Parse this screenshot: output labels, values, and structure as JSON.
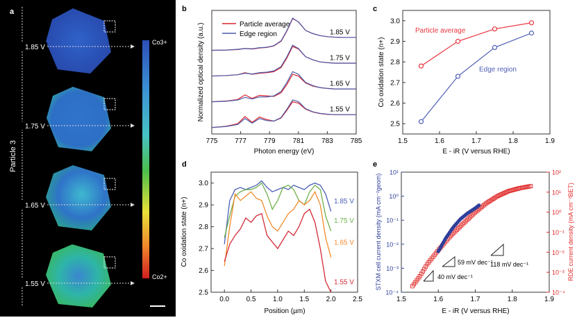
{
  "panel_labels": {
    "a": "a",
    "b": "b",
    "c": "c",
    "d": "d",
    "e": "e"
  },
  "panel_a": {
    "particle_label": "Particle 3",
    "voltages": [
      "1.85 V",
      "1.75 V",
      "1.65 V",
      "1.55 V"
    ],
    "colorbar_top": "Co3+",
    "colorbar_bottom": "Co2+",
    "colors": {
      "high": "#2b4fb8",
      "mid": "#3fa9d8",
      "low": "#d21f1f"
    }
  },
  "chart_data": [
    {
      "id": "b",
      "type": "line",
      "xlabel": "Photon energy (eV)",
      "ylabel": "Normalized optical density (a.u.)",
      "xlim": [
        775,
        785
      ],
      "xticks": [
        775,
        777,
        779,
        781,
        783,
        785
      ],
      "legend": [
        "Particle average",
        "Edge region"
      ],
      "legend_position": "top-left",
      "series_colors": {
        "Particle average": "#d9232d",
        "Edge region": "#4a5aa8"
      },
      "offsets": [
        3.0,
        2.0,
        1.0,
        0.0
      ],
      "curve_labels": [
        "1.85 V",
        "1.75 V",
        "1.65 V",
        "1.55 V"
      ],
      "x": [
        775,
        776,
        776.8,
        777.3,
        777.8,
        778.3,
        778.8,
        779.3,
        779.8,
        780.2,
        780.6,
        781.0,
        781.5,
        782.0,
        782.5,
        783.0,
        783.5,
        784,
        785
      ],
      "series": [
        {
          "name": "Particle average",
          "voltage": "1.85 V",
          "values": [
            0.05,
            0.06,
            0.08,
            0.12,
            0.1,
            0.14,
            0.16,
            0.22,
            0.4,
            0.8,
            1.28,
            1.16,
            0.82,
            0.7,
            0.62,
            0.58,
            0.56,
            0.55,
            0.55
          ]
        },
        {
          "name": "Edge region",
          "voltage": "1.85 V",
          "values": [
            0.05,
            0.06,
            0.09,
            0.12,
            0.11,
            0.15,
            0.17,
            0.23,
            0.42,
            0.82,
            1.3,
            1.15,
            0.82,
            0.7,
            0.62,
            0.58,
            0.56,
            0.55,
            0.55
          ]
        },
        {
          "name": "Particle average",
          "voltage": "1.75 V",
          "values": [
            0.05,
            0.07,
            0.1,
            0.18,
            0.12,
            0.16,
            0.18,
            0.22,
            0.38,
            0.75,
            1.2,
            1.1,
            0.8,
            0.68,
            0.6,
            0.57,
            0.55,
            0.55,
            0.55
          ]
        },
        {
          "name": "Edge region",
          "voltage": "1.75 V",
          "values": [
            0.05,
            0.07,
            0.1,
            0.16,
            0.13,
            0.18,
            0.2,
            0.25,
            0.42,
            0.8,
            1.25,
            1.12,
            0.8,
            0.68,
            0.6,
            0.57,
            0.55,
            0.55,
            0.55
          ]
        },
        {
          "name": "Particle average",
          "voltage": "1.65 V",
          "values": [
            0.05,
            0.08,
            0.14,
            0.32,
            0.18,
            0.3,
            0.28,
            0.26,
            0.4,
            0.72,
            1.12,
            1.05,
            0.78,
            0.66,
            0.6,
            0.57,
            0.55,
            0.55,
            0.55
          ]
        },
        {
          "name": "Edge region",
          "voltage": "1.65 V",
          "values": [
            0.05,
            0.07,
            0.12,
            0.22,
            0.16,
            0.24,
            0.24,
            0.28,
            0.45,
            0.8,
            1.22,
            1.12,
            0.8,
            0.68,
            0.6,
            0.57,
            0.55,
            0.55,
            0.55
          ]
        },
        {
          "name": "Particle average",
          "voltage": "1.55 V",
          "values": [
            0.05,
            0.1,
            0.2,
            0.48,
            0.25,
            0.46,
            0.36,
            0.3,
            0.42,
            0.72,
            1.05,
            1.0,
            0.76,
            0.65,
            0.59,
            0.56,
            0.55,
            0.55,
            0.55
          ]
        },
        {
          "name": "Edge region",
          "voltage": "1.55 V",
          "values": [
            0.05,
            0.09,
            0.17,
            0.4,
            0.22,
            0.4,
            0.32,
            0.3,
            0.44,
            0.76,
            1.12,
            1.06,
            0.78,
            0.66,
            0.6,
            0.57,
            0.55,
            0.55,
            0.55
          ]
        }
      ]
    },
    {
      "id": "c",
      "type": "line",
      "xlabel": "E - iR (V versus RHE)",
      "ylabel": "Co oxidation state (n+)",
      "xlim": [
        1.5,
        1.9
      ],
      "ylim": [
        2.45,
        3.05
      ],
      "xticks": [
        1.5,
        1.6,
        1.7,
        1.8,
        1.9
      ],
      "yticks": [
        2.5,
        2.6,
        2.7,
        2.8,
        2.9,
        3.0
      ],
      "x": [
        1.55,
        1.65,
        1.75,
        1.85
      ],
      "series": [
        {
          "name": "Particle average",
          "color": "#e8343c",
          "values": [
            2.78,
            2.9,
            2.96,
            2.99
          ]
        },
        {
          "name": "Edge region",
          "color": "#4f5fb6",
          "values": [
            2.51,
            2.73,
            2.87,
            2.94
          ]
        }
      ]
    },
    {
      "id": "d",
      "type": "line",
      "xlabel": "Position (µm)",
      "ylabel": "Co oxidation state (n+)",
      "xlim": [
        -0.25,
        2.5
      ],
      "ylim": [
        2.5,
        3.05
      ],
      "xticks": [
        0.0,
        0.5,
        1.0,
        1.5,
        2.0,
        2.5
      ],
      "yticks": [
        2.5,
        2.6,
        2.7,
        2.8,
        2.9,
        3.0
      ],
      "x": [
        0.0,
        0.1,
        0.2,
        0.3,
        0.4,
        0.5,
        0.6,
        0.7,
        0.8,
        0.9,
        1.0,
        1.1,
        1.2,
        1.3,
        1.4,
        1.5,
        1.6,
        1.7,
        1.8,
        1.9,
        2.0
      ],
      "series": [
        {
          "name": "1.85 V",
          "color": "#4a5fb5",
          "values": [
            2.72,
            2.92,
            2.97,
            2.98,
            2.97,
            2.98,
            2.99,
            3.01,
            2.98,
            2.96,
            2.97,
            2.98,
            2.97,
            2.99,
            2.98,
            2.97,
            2.99,
            3.0,
            2.99,
            2.95,
            2.87
          ]
        },
        {
          "name": "1.75 V",
          "color": "#6fb04a",
          "values": [
            2.75,
            2.85,
            2.94,
            2.96,
            2.97,
            2.97,
            2.98,
            3.0,
            2.95,
            2.88,
            2.92,
            2.98,
            2.99,
            2.97,
            2.92,
            2.9,
            2.96,
            2.99,
            2.97,
            2.85,
            2.78
          ]
        },
        {
          "name": "1.65 V",
          "color": "#f08a2c",
          "values": [
            2.62,
            2.8,
            2.95,
            2.92,
            2.94,
            2.96,
            2.93,
            2.92,
            2.85,
            2.8,
            2.78,
            2.82,
            2.86,
            2.88,
            2.92,
            2.9,
            2.92,
            2.96,
            2.9,
            2.75,
            2.66
          ]
        },
        {
          "name": "1.55 V",
          "color": "#d42a36",
          "values": [
            2.64,
            2.72,
            2.76,
            2.79,
            2.84,
            2.82,
            2.85,
            2.86,
            2.76,
            2.73,
            2.7,
            2.74,
            2.78,
            2.76,
            2.8,
            2.86,
            2.88,
            2.82,
            2.7,
            2.55,
            2.5
          ]
        }
      ],
      "curve_labels": [
        "1.85 V",
        "1.75 V",
        "1.65 V",
        "1.55 V"
      ]
    },
    {
      "id": "e",
      "type": "scatter",
      "xlabel": "E - iR (V versus RHE)",
      "ylabel_left": "STXM cell current density (mA cm⁻²geom)",
      "ylabel_right": "RDE current density (mA cm⁻²BET)",
      "xlim": [
        1.5,
        1.9
      ],
      "xticks": [
        1.5,
        1.6,
        1.7,
        1.8,
        1.9
      ],
      "ylim_left_log10": [
        -4,
        1
      ],
      "ylim_right_log10": [
        -4,
        2
      ],
      "yticks_left": [
        "10⁻⁴",
        "10⁻³",
        "10⁻²",
        "10⁻¹",
        "10⁰",
        "10¹"
      ],
      "yticks_right": [
        "10⁻⁴",
        "10⁻³",
        "10⁻²",
        "10⁻¹",
        "10⁰",
        "10¹",
        "10²"
      ],
      "stxm": {
        "color": "#2f3f9a",
        "x": [
          1.6,
          1.62,
          1.64,
          1.66,
          1.68,
          1.7,
          1.71
        ],
        "log10_values": [
          -2.3,
          -1.75,
          -1.3,
          -0.95,
          -0.7,
          -0.5,
          -0.38
        ]
      },
      "rde": {
        "color": "#e02a2a",
        "x": [
          1.53,
          1.55,
          1.57,
          1.6,
          1.63,
          1.66,
          1.7,
          1.73,
          1.76,
          1.79,
          1.82,
          1.85
        ],
        "log10_values": [
          -3.7,
          -3.2,
          -2.6,
          -1.9,
          -1.25,
          -0.7,
          0.0,
          0.45,
          0.8,
          1.05,
          1.2,
          1.3
        ]
      },
      "slopes": [
        "118 mV dec⁻¹",
        "59 mV dec⁻¹",
        "40 mV dec⁻¹"
      ]
    }
  ]
}
